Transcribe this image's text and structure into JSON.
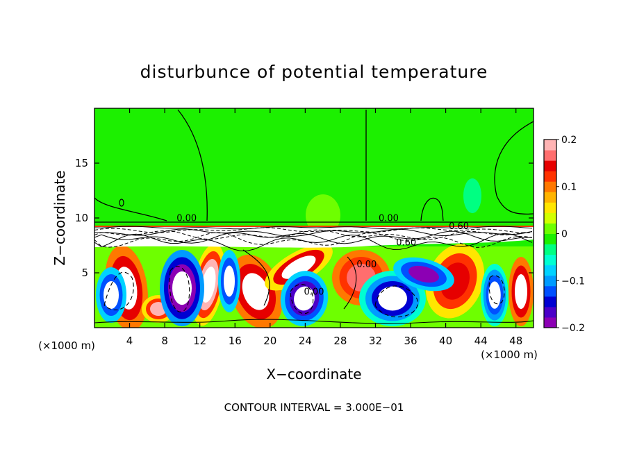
{
  "chart_data": {
    "type": "heatmap",
    "title": "disturbunce of potential temperature",
    "xlabel": "X−coordinate",
    "ylabel": "Z−coordinate",
    "x_unit_left": "(×1000 m)",
    "x_unit_right": "(×1000 m)",
    "footer": "CONTOUR INTERVAL = 3.000E−01",
    "xlim": [
      0,
      50
    ],
    "ylim": [
      0,
      20
    ],
    "x_ticks": [
      4,
      8,
      12,
      16,
      20,
      24,
      28,
      32,
      36,
      40,
      44,
      48
    ],
    "x_tick_labels": [
      "4",
      "8",
      "12",
      "16",
      "20",
      "24",
      "28",
      "32",
      "36",
      "40",
      "44",
      "48"
    ],
    "y_ticks": [
      5,
      10,
      15
    ],
    "y_tick_labels": [
      "5",
      "10",
      "15"
    ],
    "contour_labels": [
      {
        "text": "0.00",
        "x": 10.5,
        "y": 9.7
      },
      {
        "text": "0.00",
        "x": 33.5,
        "y": 9.7
      },
      {
        "text": "0.60",
        "x": 41.5,
        "y": 9.0
      },
      {
        "text": "0.60",
        "x": 35.5,
        "y": 7.5
      },
      {
        "text": "0.00",
        "x": 31.0,
        "y": 5.5
      },
      {
        "text": "0.00",
        "x": 25.0,
        "y": 3.0
      }
    ],
    "colorbar": {
      "min": -0.2,
      "max": 0.2,
      "ticks": [
        0.2,
        0.1,
        0,
        -0.1,
        -0.2
      ],
      "tick_labels": [
        "0.2",
        "0.1",
        "0",
        "−0.1",
        "−0.2"
      ],
      "colors": [
        "#8c00b4",
        "#4b00c8",
        "#0000d2",
        "#0050ff",
        "#009bff",
        "#00d2ff",
        "#00ffd2",
        "#00ff82",
        "#1cf000",
        "#6eff00",
        "#d2ff00",
        "#ffe600",
        "#ffb400",
        "#ff7800",
        "#ff3200",
        "#e60000",
        "#ff6e6e",
        "#ffb4b4"
      ]
    }
  }
}
